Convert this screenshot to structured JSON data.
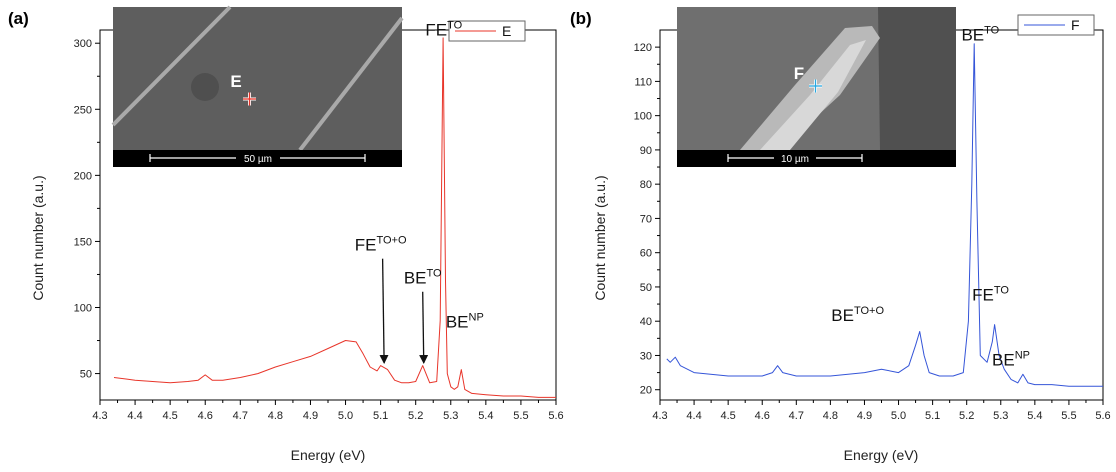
{
  "chart_data": [
    {
      "type": "line",
      "panel_label": "(a)",
      "xlabel": "Energy (eV)",
      "ylabel": "Count number (a.u.)",
      "xlim": [
        4.3,
        5.6
      ],
      "ylim": [
        30,
        310
      ],
      "xticks": [
        4.3,
        4.4,
        4.5,
        4.6,
        4.7,
        4.8,
        4.9,
        5.0,
        5.1,
        5.2,
        5.3,
        5.4,
        5.5,
        5.6
      ],
      "yticks": [
        50,
        100,
        150,
        200,
        250,
        300
      ],
      "legend": "top-right",
      "grid": false,
      "series": [
        {
          "name": "E",
          "color": "#e8352a",
          "x": [
            4.34,
            4.4,
            4.45,
            4.5,
            4.55,
            4.58,
            4.6,
            4.62,
            4.65,
            4.7,
            4.75,
            4.8,
            4.85,
            4.9,
            4.95,
            5.0,
            5.03,
            5.05,
            5.07,
            5.09,
            5.1,
            5.12,
            5.14,
            5.16,
            5.18,
            5.2,
            5.22,
            5.24,
            5.26,
            5.27,
            5.278,
            5.285,
            5.29,
            5.3,
            5.31,
            5.32,
            5.33,
            5.34,
            5.36,
            5.4,
            5.45,
            5.5,
            5.55,
            5.6
          ],
          "y": [
            47,
            45,
            44,
            43,
            44,
            45,
            49,
            45,
            45,
            47,
            50,
            55,
            59,
            63,
            69,
            75,
            74,
            65,
            55,
            52,
            56,
            53,
            45,
            43,
            43,
            44,
            56,
            43,
            44,
            90,
            304,
            120,
            50,
            40,
            38,
            40,
            53,
            38,
            35,
            34,
            33,
            33,
            32,
            32
          ]
        }
      ],
      "annotations": [
        {
          "base": "FE",
          "sup": "TO",
          "x": 5.28,
          "y": 306
        },
        {
          "base": "FE",
          "sup": "TO+O",
          "x": 5.1,
          "y": 143,
          "arrow_to": [
            5.11,
            58
          ]
        },
        {
          "base": "BE",
          "sup": "TO",
          "x": 5.22,
          "y": 118,
          "arrow_to": [
            5.223,
            58
          ]
        },
        {
          "base": "BE",
          "sup": "NP",
          "x": 5.34,
          "y": 85
        }
      ],
      "inset": {
        "point_label": "E",
        "scale_bar": "50 µm"
      }
    },
    {
      "type": "line",
      "panel_label": "(b)",
      "xlabel": "Energy (eV)",
      "ylabel": "Count number (a.u.)",
      "xlim": [
        4.3,
        5.6
      ],
      "ylim": [
        17,
        125
      ],
      "xticks": [
        4.3,
        4.4,
        4.5,
        4.6,
        4.7,
        4.8,
        4.9,
        5.0,
        5.1,
        5.2,
        5.3,
        5.4,
        5.5,
        5.6
      ],
      "yticks": [
        20,
        30,
        40,
        50,
        60,
        70,
        80,
        90,
        100,
        110,
        120
      ],
      "legend": "top-right",
      "grid": false,
      "series": [
        {
          "name": "F",
          "color": "#3555d8",
          "x": [
            4.32,
            4.33,
            4.345,
            4.36,
            4.4,
            4.5,
            4.6,
            4.63,
            4.645,
            4.66,
            4.7,
            4.8,
            4.9,
            4.95,
            5.0,
            5.03,
            5.05,
            5.062,
            5.075,
            5.09,
            5.12,
            5.16,
            5.19,
            5.205,
            5.215,
            5.222,
            5.23,
            5.24,
            5.26,
            5.275,
            5.282,
            5.295,
            5.31,
            5.33,
            5.35,
            5.365,
            5.38,
            5.4,
            5.45,
            5.5,
            5.55,
            5.6
          ],
          "y": [
            29,
            28,
            29.5,
            27,
            25,
            24,
            24,
            25,
            27,
            25,
            24,
            24,
            25,
            26,
            25,
            27,
            33,
            37,
            30,
            25,
            24,
            24,
            25,
            40,
            80,
            121,
            75,
            30,
            28,
            34,
            39,
            30,
            26,
            23,
            22,
            24.5,
            22,
            21.5,
            21.5,
            21,
            21,
            21
          ]
        }
      ],
      "annotations": [
        {
          "base": "BE",
          "sup": "TO",
          "x": 5.24,
          "y": 122
        },
        {
          "base": "BE",
          "sup": "TO+O",
          "x": 4.88,
          "y": 40
        },
        {
          "base": "FE",
          "sup": "TO",
          "x": 5.27,
          "y": 46
        },
        {
          "base": "BE",
          "sup": "NP",
          "x": 5.33,
          "y": 27
        }
      ],
      "inset": {
        "point_label": "F",
        "scale_bar": "10 µm"
      }
    }
  ]
}
